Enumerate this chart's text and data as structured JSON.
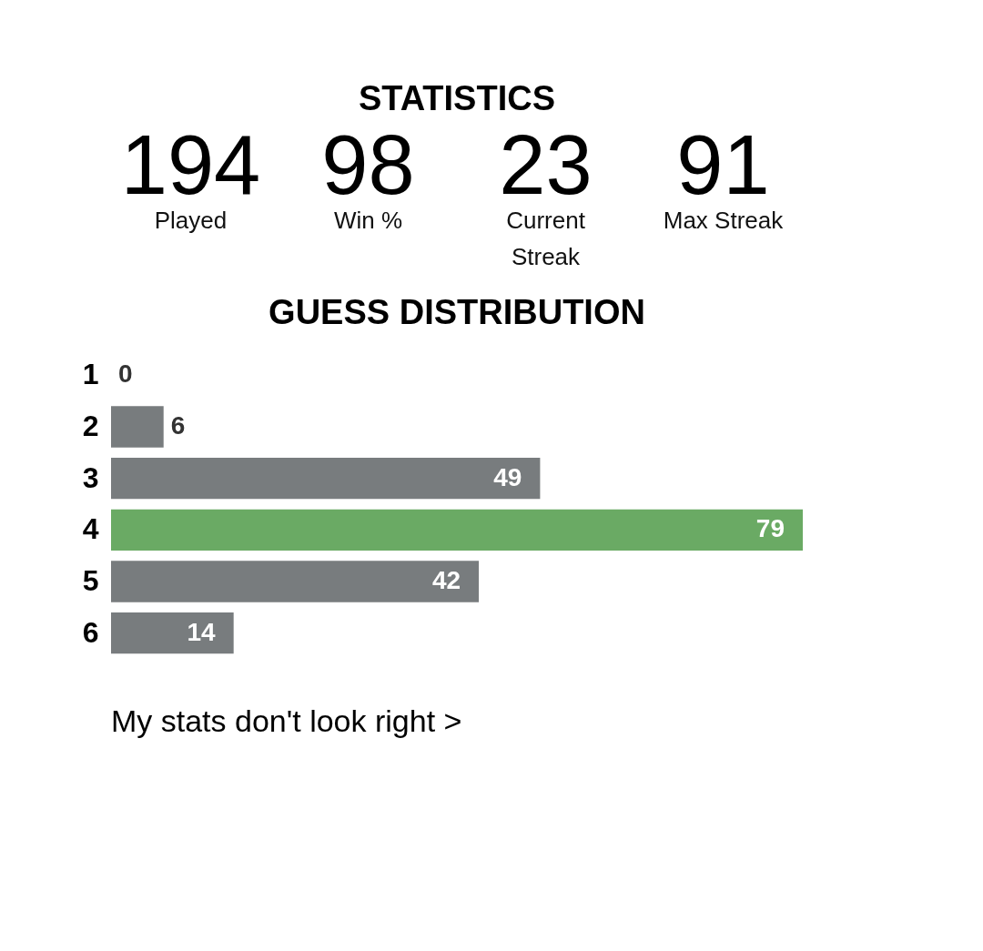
{
  "chart_data": [
    {
      "type": "other",
      "title": "STATISTICS",
      "annotations": [
        "194",
        "Played",
        "98",
        "Win %",
        "23",
        "Current Streak",
        "91",
        "Max Streak"
      ]
    },
    {
      "type": "bar",
      "orientation": "horizontal",
      "title": "GUESS DISTRIBUTION",
      "categories": [
        "1",
        "2",
        "3",
        "4",
        "5",
        "6"
      ],
      "values": [
        0,
        6,
        49,
        79,
        42,
        14
      ],
      "colors": [
        "#787c7e",
        "#787c7e",
        "#787c7e",
        "#6aaa64",
        "#787c7e",
        "#787c7e"
      ],
      "data_labels": true,
      "annotations": [
        "My stats don't look right >"
      ]
    }
  ]
}
